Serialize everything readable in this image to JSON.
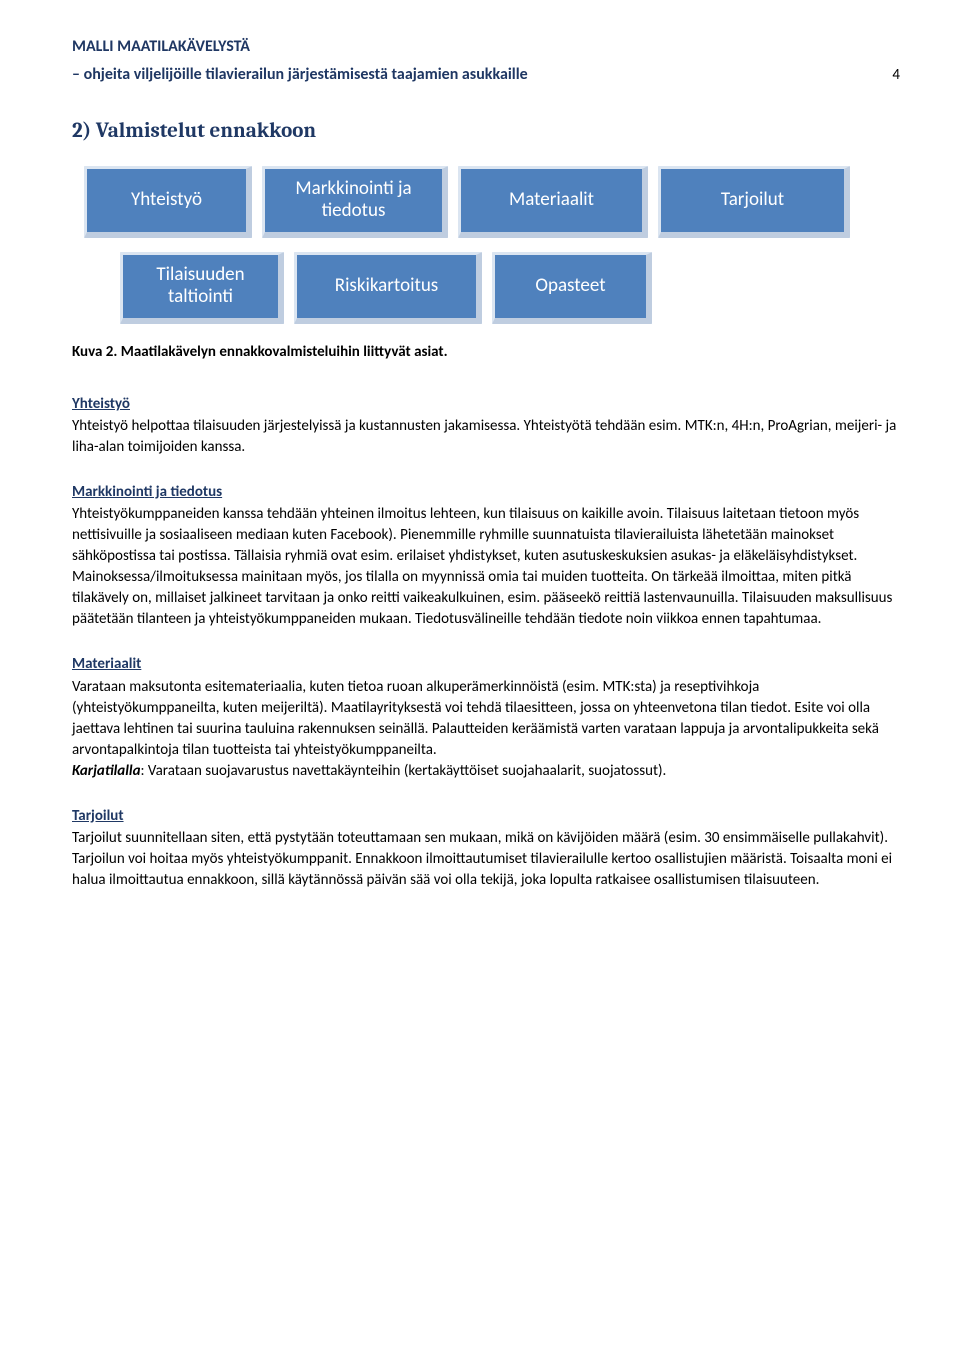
{
  "header": {
    "title": "MALLI MAATILAKÄVELYSTÄ",
    "subtitle": "– ohjeita viljelijöille tilavierailun järjestämisestä taajamien asukkaille",
    "page_number": "4"
  },
  "section_heading": "2) Valmistelut ennakkoon",
  "diagram": {
    "row1": [
      {
        "label": "Yhteistyö"
      },
      {
        "label": "Markkinointi ja tiedotus"
      },
      {
        "label": "Materiaalit"
      },
      {
        "label": "Tarjoilut"
      }
    ],
    "row2": [
      {
        "label": "Tilaisuuden taltiointi"
      },
      {
        "label": "Riskikartoitus"
      },
      {
        "label": "Opasteet"
      }
    ],
    "box_bg": "#4f81bd",
    "box_text_color": "#ffffff",
    "box_fontsize": 19
  },
  "figure_caption": "Kuva 2. Maatilakävelyn ennakkovalmisteluihin liittyvät asiat.",
  "sections": {
    "yhteistyo": {
      "heading": "Yhteistyö",
      "body": "Yhteistyö helpottaa tilaisuuden järjestelyissä ja kustannusten jakamisessa. Yhteistyötä tehdään esim. MTK:n, 4H:n, ProAgrian, meijeri- ja liha-alan toimijoiden kanssa."
    },
    "markkinointi": {
      "heading": "Markkinointi ja tiedotus",
      "body": "Yhteistyökumppaneiden kanssa tehdään yhteinen ilmoitus lehteen, kun tilaisuus on kaikille avoin. Tilaisuus laitetaan tietoon myös nettisivuille ja sosiaaliseen mediaan kuten Facebook). Pienemmille ryhmille suunnatuista tilavierailuista lähetetään mainokset sähköpostissa tai postissa. Tällaisia ryhmiä ovat esim. erilaiset yhdistykset, kuten asutuskeskuksien asukas- ja eläkeläisyhdistykset. Mainoksessa/ilmoituksessa mainitaan myös, jos tilalla on myynnissä omia tai muiden tuotteita. On tärkeää ilmoittaa, miten pitkä tilakävely on, millaiset jalkineet tarvitaan ja onko reitti vaikeakulkuinen, esim. pääseekö reittiä lastenvaunuilla. Tilaisuuden maksullisuus päätetään tilanteen ja yhteistyökumppaneiden mukaan. Tiedotusvälineille tehdään tiedote noin viikkoa ennen tapahtumaa."
    },
    "materiaalit": {
      "heading": "Materiaalit",
      "body": "Varataan maksutonta esitemateriaalia, kuten tietoa ruoan alkuperämerkinnöistä (esim. MTK:sta) ja reseptivihkoja (yhteistyökumppaneilta, kuten meijeriltä). Maatilayrityksestä voi tehdä tilaesitteen, jossa on yhteenvetona tilan tiedot. Esite voi olla jaettava lehtinen tai suurina tauluina rakennuksen seinällä. Palautteiden keräämistä varten varataan lappuja ja arvontalipukkeita sekä arvontapalkintoja tilan tuotteista tai yhteistyökumppaneilta.",
      "karjatila_label": "Karjatilalla",
      "karjatila_rest": ": Varataan suojavarustus navettakäynteihin (kertakäyttöiset suojahaalarit, suojatossut)."
    },
    "tarjoilut": {
      "heading": "Tarjoilut",
      "body": "Tarjoilut suunnitellaan siten, että pystytään toteuttamaan sen mukaan, mikä on kävijöiden määrä (esim. 30 ensimmäiselle pullakahvit). Tarjoilun voi hoitaa myös yhteistyökumppanit. Ennakkoon ilmoittautumiset tilavierailulle kertoo osallistujien määristä. Toisaalta moni ei halua ilmoittautua ennakkoon, sillä käytännössä päivän sää voi olla tekijä, joka lopulta ratkaisee osallistumisen tilaisuuteen."
    }
  },
  "colors": {
    "heading_navy": "#1f3864",
    "text_black": "#000000",
    "bg_white": "#ffffff"
  }
}
